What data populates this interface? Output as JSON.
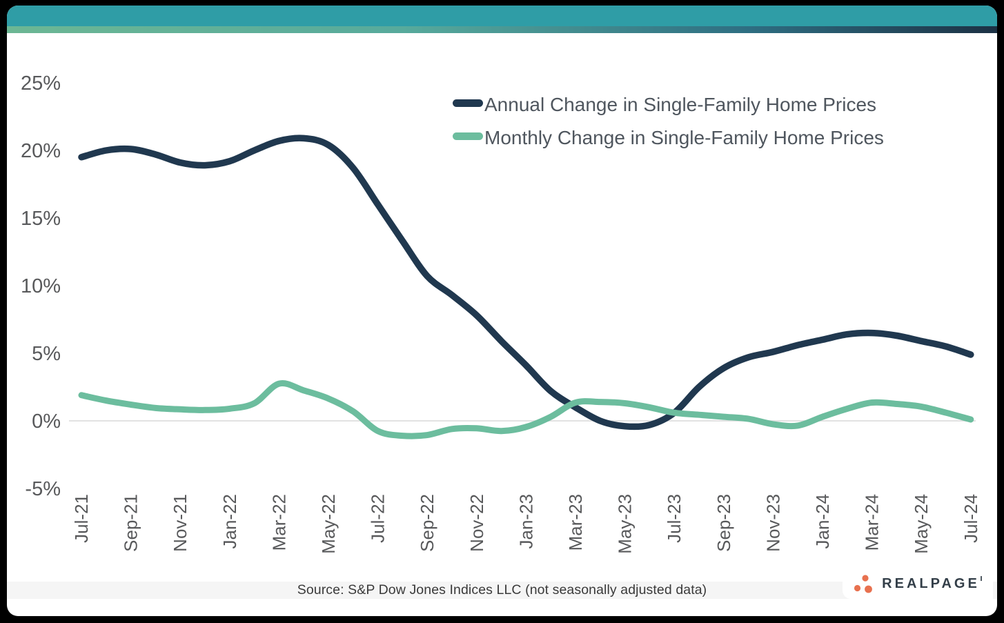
{
  "chart_data": {
    "type": "line",
    "title": "",
    "x": [
      "Jul-21",
      "Aug-21",
      "Sep-21",
      "Oct-21",
      "Nov-21",
      "Dec-21",
      "Jan-22",
      "Feb-22",
      "Mar-22",
      "Apr-22",
      "May-22",
      "Jun-22",
      "Jul-22",
      "Aug-22",
      "Sep-22",
      "Oct-22",
      "Nov-22",
      "Dec-22",
      "Jan-23",
      "Feb-23",
      "Mar-23",
      "Apr-23",
      "May-23",
      "Jun-23",
      "Jul-23",
      "Aug-23",
      "Sep-23",
      "Oct-23",
      "Nov-23",
      "Dec-23",
      "Jan-24",
      "Feb-24",
      "Mar-24",
      "Apr-24",
      "May-24",
      "Jun-24",
      "Jul-24"
    ],
    "x_tick_step": 2,
    "series": [
      {
        "name": "Annual Change in Single-Family Home Prices",
        "color": "#20384F",
        "values": [
          19.5,
          20.0,
          20.1,
          19.7,
          19.1,
          18.9,
          19.2,
          20.0,
          20.7,
          20.9,
          20.4,
          18.7,
          16.0,
          13.3,
          10.7,
          9.3,
          7.8,
          5.9,
          4.1,
          2.2,
          1.0,
          0.0,
          -0.4,
          -0.3,
          0.6,
          2.5,
          3.9,
          4.7,
          5.1,
          5.6,
          6.0,
          6.4,
          6.5,
          6.3,
          5.9,
          5.5,
          4.9
        ]
      },
      {
        "name": "Monthly Change in Single-Family Home Prices",
        "color": "#6CBD9E",
        "values": [
          1.9,
          1.5,
          1.2,
          0.95,
          0.85,
          0.8,
          0.9,
          1.3,
          2.75,
          2.25,
          1.65,
          0.7,
          -0.75,
          -1.1,
          -1.05,
          -0.6,
          -0.55,
          -0.75,
          -0.45,
          0.3,
          1.35,
          1.4,
          1.3,
          1.0,
          0.6,
          0.45,
          0.3,
          0.15,
          -0.25,
          -0.35,
          0.3,
          0.9,
          1.35,
          1.25,
          1.05,
          0.6,
          0.1
        ]
      }
    ],
    "y_ticks": [
      {
        "label": "25%",
        "value": 25
      },
      {
        "label": "20%",
        "value": 20
      },
      {
        "label": "15%",
        "value": 15
      },
      {
        "label": "10%",
        "value": 10
      },
      {
        "label": "5%",
        "value": 5
      },
      {
        "label": "0%",
        "value": 0
      },
      {
        "label": "-5%",
        "value": -5
      }
    ],
    "ylim": [
      -6.5,
      26.5
    ],
    "grid": "horizontal gridline at 0% only",
    "legend_position": "top-right inside plot"
  },
  "footer": {
    "source_text": "Source: S&P Dow Jones Indices LLC (not seasonally adjusted data)"
  },
  "logo": {
    "text": "REALPAGE"
  },
  "theme": {
    "frame": "#000000",
    "card_bg": "#FFFFFF",
    "header_teal": "#2F9DA6",
    "gradient": [
      "#6CB794",
      "#57AA9C",
      "#1C3144"
    ],
    "gridline": "#E2E2E2",
    "axis_text": "#58595B",
    "legend_text": "#4F565E",
    "footer_bg": "#F5F5F5",
    "footer_text": "#3A3A3A",
    "logo_orange": "#E8714F",
    "logo_navy": "#333E48"
  }
}
